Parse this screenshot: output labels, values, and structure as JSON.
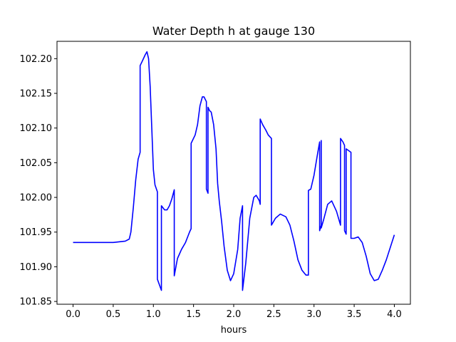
{
  "chart_data": {
    "type": "line",
    "title": "Water Depth h at gauge 130",
    "xlabel": "hours",
    "ylabel": "",
    "xlim": [
      -0.2,
      4.2
    ],
    "ylim": [
      101.846,
      102.225
    ],
    "grid": false,
    "x_ticks": [
      0.0,
      0.5,
      1.0,
      1.5,
      2.0,
      2.5,
      3.0,
      3.5,
      4.0
    ],
    "x_tick_labels": [
      "0.0",
      "0.5",
      "1.0",
      "1.5",
      "2.0",
      "2.5",
      "3.0",
      "3.5",
      "4.0"
    ],
    "y_ticks": [
      101.85,
      101.9,
      101.95,
      102.0,
      102.05,
      102.1,
      102.15,
      102.2
    ],
    "y_tick_labels": [
      "101.85",
      "101.90",
      "101.95",
      "102.00",
      "102.05",
      "102.10",
      "102.15",
      "102.20"
    ],
    "series": [
      {
        "color": "#0000ff",
        "points": [
          [
            0.0,
            101.935
          ],
          [
            0.5,
            101.935
          ],
          [
            0.65,
            101.937
          ],
          [
            0.7,
            101.94
          ],
          [
            0.72,
            101.95
          ],
          [
            0.75,
            101.985
          ],
          [
            0.78,
            102.025
          ],
          [
            0.81,
            102.055
          ],
          [
            0.835,
            102.065
          ],
          [
            0.835,
            102.19
          ],
          [
            0.86,
            102.196
          ],
          [
            0.9,
            102.206
          ],
          [
            0.92,
            102.21
          ],
          [
            0.94,
            102.2
          ],
          [
            0.96,
            102.16
          ],
          [
            0.98,
            102.1
          ],
          [
            1.0,
            102.04
          ],
          [
            1.02,
            102.018
          ],
          [
            1.05,
            102.008
          ],
          [
            1.05,
            101.882
          ],
          [
            1.1,
            101.866
          ],
          [
            1.1,
            101.988
          ],
          [
            1.14,
            101.982
          ],
          [
            1.17,
            101.982
          ],
          [
            1.2,
            101.988
          ],
          [
            1.23,
            101.998
          ],
          [
            1.26,
            102.011
          ],
          [
            1.26,
            101.887
          ],
          [
            1.3,
            101.912
          ],
          [
            1.35,
            101.925
          ],
          [
            1.4,
            101.935
          ],
          [
            1.45,
            101.95
          ],
          [
            1.47,
            101.955
          ],
          [
            1.47,
            102.078
          ],
          [
            1.52,
            102.09
          ],
          [
            1.55,
            102.105
          ],
          [
            1.58,
            102.132
          ],
          [
            1.61,
            102.145
          ],
          [
            1.63,
            102.145
          ],
          [
            1.66,
            102.138
          ],
          [
            1.66,
            102.012
          ],
          [
            1.68,
            102.006
          ],
          [
            1.68,
            102.13
          ],
          [
            1.7,
            102.125
          ],
          [
            1.72,
            102.123
          ],
          [
            1.75,
            102.105
          ],
          [
            1.78,
            102.07
          ],
          [
            1.8,
            102.02
          ],
          [
            1.82,
            101.995
          ],
          [
            1.85,
            101.965
          ],
          [
            1.88,
            101.93
          ],
          [
            1.92,
            101.895
          ],
          [
            1.96,
            101.88
          ],
          [
            2.0,
            101.89
          ],
          [
            2.05,
            101.925
          ],
          [
            2.08,
            101.97
          ],
          [
            2.11,
            101.988
          ],
          [
            2.11,
            101.866
          ],
          [
            2.15,
            101.905
          ],
          [
            2.2,
            101.97
          ],
          [
            2.25,
            102.0
          ],
          [
            2.28,
            102.003
          ],
          [
            2.32,
            101.995
          ],
          [
            2.33,
            101.99
          ],
          [
            2.33,
            102.113
          ],
          [
            2.36,
            102.105
          ],
          [
            2.4,
            102.097
          ],
          [
            2.43,
            102.09
          ],
          [
            2.47,
            102.085
          ],
          [
            2.47,
            101.96
          ],
          [
            2.52,
            101.97
          ],
          [
            2.58,
            101.976
          ],
          [
            2.65,
            101.972
          ],
          [
            2.7,
            101.96
          ],
          [
            2.75,
            101.937
          ],
          [
            2.8,
            101.91
          ],
          [
            2.85,
            101.895
          ],
          [
            2.9,
            101.888
          ],
          [
            2.93,
            101.888
          ],
          [
            2.93,
            102.01
          ],
          [
            2.96,
            102.012
          ],
          [
            3.0,
            102.032
          ],
          [
            3.04,
            102.06
          ],
          [
            3.07,
            102.08
          ],
          [
            3.07,
            101.952
          ],
          [
            3.09,
            101.96
          ],
          [
            3.09,
            102.082
          ],
          [
            3.09,
            101.956
          ],
          [
            3.12,
            101.968
          ],
          [
            3.17,
            101.99
          ],
          [
            3.22,
            101.995
          ],
          [
            3.28,
            101.98
          ],
          [
            3.33,
            101.96
          ],
          [
            3.33,
            102.085
          ],
          [
            3.36,
            102.08
          ],
          [
            3.38,
            102.075
          ],
          [
            3.38,
            101.952
          ],
          [
            3.4,
            101.947
          ],
          [
            3.4,
            102.07
          ],
          [
            3.46,
            102.065
          ],
          [
            3.46,
            101.941
          ],
          [
            3.5,
            101.941
          ],
          [
            3.55,
            101.943
          ],
          [
            3.6,
            101.935
          ],
          [
            3.65,
            101.915
          ],
          [
            3.7,
            101.89
          ],
          [
            3.75,
            101.88
          ],
          [
            3.8,
            101.882
          ],
          [
            3.85,
            101.895
          ],
          [
            3.9,
            101.91
          ],
          [
            3.95,
            101.928
          ],
          [
            4.0,
            101.946
          ]
        ]
      }
    ]
  }
}
